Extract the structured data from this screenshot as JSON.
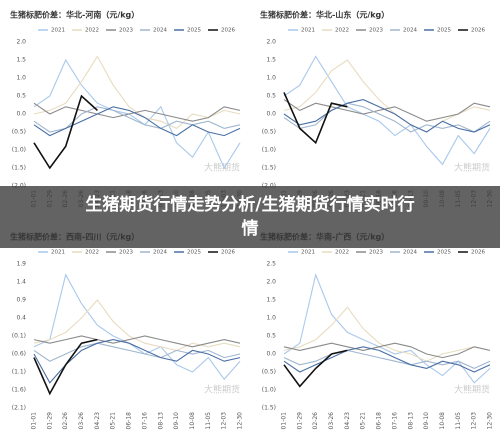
{
  "banner_title": "生猪期货行情走势分析/生猪期货行情实时行情",
  "chart_data": [
    {
      "type": "line",
      "title": "生猪标肥价差：华北-河南（元/kg）",
      "watermark": "大熊期货",
      "grid": false,
      "categories": [
        "01-01",
        "01-29",
        "02-26",
        "03-26",
        "04-23",
        "05-21",
        "06-18",
        "07-16",
        "08-13",
        "09-10",
        "10-08",
        "11-05",
        "12-03",
        "12-30"
      ],
      "ylim": [
        -2,
        2
      ],
      "yticks": [
        {
          "value": 2,
          "label": "2.0"
        },
        {
          "value": 1.5,
          "label": "1.5"
        },
        {
          "value": 1,
          "label": "1.0"
        },
        {
          "value": 0.5,
          "label": "0.5"
        },
        {
          "value": 0,
          "label": "0.0"
        },
        {
          "value": -0.5,
          "label": "(0.5)"
        },
        {
          "value": -1,
          "label": "(1.0)"
        },
        {
          "value": -1.5,
          "label": "(1.5)"
        },
        {
          "value": -2,
          "label": "(2.0)"
        }
      ],
      "series": [
        {
          "name": "2021",
          "color": "#a9c8ec",
          "values": [
            0.2,
            0.5,
            1.5,
            0.8,
            0.3,
            0.1,
            0.0,
            -0.3,
            0.2,
            -0.8,
            -1.2,
            -0.5,
            -1.5,
            -0.8
          ]
        },
        {
          "name": "2022",
          "color": "#e8dcc0",
          "values": [
            0.0,
            0.1,
            0.3,
            0.9,
            1.6,
            0.8,
            0.2,
            -0.1,
            -0.2,
            -0.4,
            0.0,
            -0.1,
            0.1,
            0.0
          ]
        },
        {
          "name": "2023",
          "color": "#8a8a8a",
          "values": [
            0.3,
            0.0,
            0.2,
            0.1,
            0.0,
            -0.1,
            0.0,
            0.1,
            0.0,
            -0.1,
            -0.2,
            -0.1,
            0.2,
            0.1
          ]
        },
        {
          "name": "2024",
          "color": "#9fb6cf",
          "values": [
            -0.2,
            -0.5,
            -0.4,
            0.0,
            0.2,
            0.1,
            -0.1,
            -0.3,
            -0.4,
            -0.2,
            -0.3,
            -0.2,
            -0.4,
            -0.3
          ]
        },
        {
          "name": "2025",
          "color": "#4a6fa5",
          "values": [
            -0.3,
            -0.6,
            -0.4,
            -0.2,
            0.0,
            0.2,
            0.1,
            -0.1,
            -0.4,
            -0.6,
            -0.3,
            -0.5,
            -0.6,
            -0.4
          ]
        },
        {
          "name": "2026",
          "color": "#111111",
          "values": [
            -0.8,
            -1.5,
            -0.9,
            0.5,
            0.1,
            null,
            null,
            null,
            null,
            null,
            null,
            null,
            null,
            null
          ]
        }
      ]
    },
    {
      "type": "line",
      "title": "生猪标肥价差：华北-山东（元/kg）",
      "watermark": "大熊期货",
      "grid": false,
      "categories": [
        "01-01",
        "01-29",
        "02-26",
        "03-26",
        "04-23",
        "05-21",
        "06-18",
        "07-16",
        "08-13",
        "09-10",
        "10-08",
        "11-05",
        "12-03",
        "12-30"
      ],
      "ylim": [
        -2,
        2
      ],
      "yticks": [
        {
          "value": 2,
          "label": "2.0"
        },
        {
          "value": 1.5,
          "label": "1.5"
        },
        {
          "value": 1,
          "label": "1.0"
        },
        {
          "value": 0.5,
          "label": "0.5"
        },
        {
          "value": 0,
          "label": "0.0"
        },
        {
          "value": -0.5,
          "label": "(0.5)"
        },
        {
          "value": -1,
          "label": "(1.0)"
        },
        {
          "value": -1.5,
          "label": "(1.5)"
        },
        {
          "value": -2,
          "label": "(2.0)"
        }
      ],
      "series": [
        {
          "name": "2021",
          "color": "#a9c8ec",
          "values": [
            0.5,
            0.8,
            1.6,
            0.9,
            0.2,
            0.0,
            -0.2,
            -0.6,
            -0.3,
            -0.9,
            -1.4,
            -0.6,
            -1.1,
            -0.4
          ]
        },
        {
          "name": "2022",
          "color": "#e8dcc0",
          "values": [
            0.1,
            0.2,
            0.6,
            1.2,
            1.5,
            0.9,
            0.4,
            0.0,
            -0.3,
            -0.5,
            -0.2,
            0.0,
            0.2,
            0.1
          ]
        },
        {
          "name": "2023",
          "color": "#8a8a8a",
          "values": [
            0.4,
            0.1,
            0.3,
            0.2,
            0.1,
            0.0,
            0.1,
            0.2,
            0.0,
            -0.2,
            -0.1,
            0.0,
            0.3,
            0.2
          ]
        },
        {
          "name": "2024",
          "color": "#9fb6cf",
          "values": [
            -0.1,
            -0.4,
            -0.3,
            0.1,
            0.3,
            0.2,
            0.0,
            -0.2,
            -0.5,
            -0.3,
            -0.4,
            -0.3,
            -0.5,
            -0.2
          ]
        },
        {
          "name": "2025",
          "color": "#4a6fa5",
          "values": [
            0.0,
            -0.3,
            -0.2,
            0.1,
            0.3,
            0.4,
            0.2,
            0.0,
            -0.3,
            -0.5,
            -0.2,
            -0.4,
            -0.5,
            -0.3
          ]
        },
        {
          "name": "2026",
          "color": "#111111",
          "values": [
            0.6,
            -0.4,
            -0.8,
            0.3,
            0.2,
            null,
            null,
            null,
            null,
            null,
            null,
            null,
            null,
            null
          ]
        }
      ]
    },
    {
      "type": "line",
      "title": "生猪标肥价差：西南-四川（元/kg）",
      "watermark": "大熊期货",
      "grid": false,
      "categories": [
        "01-01",
        "01-29",
        "02-26",
        "03-26",
        "04-23",
        "05-21",
        "06-18",
        "07-16",
        "08-13",
        "09-10",
        "10-08",
        "11-05",
        "12-03",
        "12-30"
      ],
      "ylim": [
        -2.1,
        1.9
      ],
      "yticks": [
        {
          "value": 1.9,
          "label": "1.9"
        },
        {
          "value": 1.4,
          "label": "1.4"
        },
        {
          "value": 0.9,
          "label": "0.9"
        },
        {
          "value": 0.4,
          "label": "0.4"
        },
        {
          "value": -0.1,
          "label": "(0.1)"
        },
        {
          "value": -0.6,
          "label": "(0.6)"
        },
        {
          "value": -1.1,
          "label": "(1.1)"
        },
        {
          "value": -1.6,
          "label": "(1.6)"
        },
        {
          "value": -2.1,
          "label": "(2.1)"
        }
      ],
      "series": [
        {
          "name": "2021",
          "color": "#a9c8ec",
          "values": [
            -0.4,
            -0.2,
            1.6,
            0.8,
            0.2,
            -0.1,
            -0.3,
            -0.6,
            -0.4,
            -0.9,
            -1.1,
            -0.7,
            -1.3,
            -0.8
          ]
        },
        {
          "name": "2022",
          "color": "#e8dcc0",
          "values": [
            -0.3,
            -0.2,
            0.0,
            0.4,
            0.9,
            0.3,
            -0.1,
            -0.3,
            -0.4,
            -0.5,
            -0.3,
            -0.4,
            -0.3,
            -0.4
          ]
        },
        {
          "name": "2023",
          "color": "#8a8a8a",
          "values": [
            -0.2,
            -0.3,
            -0.2,
            -0.1,
            -0.2,
            -0.3,
            -0.2,
            -0.1,
            -0.2,
            -0.3,
            -0.4,
            -0.3,
            -0.2,
            -0.3
          ]
        },
        {
          "name": "2024",
          "color": "#9fb6cf",
          "values": [
            -0.5,
            -0.8,
            -0.6,
            -0.4,
            -0.3,
            -0.4,
            -0.5,
            -0.6,
            -0.7,
            -0.5,
            -0.6,
            -0.5,
            -0.7,
            -0.6
          ]
        },
        {
          "name": "2025",
          "color": "#4a6fa5",
          "values": [
            -0.6,
            -1.4,
            -0.9,
            -0.5,
            -0.3,
            -0.2,
            -0.3,
            -0.5,
            -0.7,
            -0.8,
            -0.5,
            -0.6,
            -0.8,
            -0.7
          ]
        },
        {
          "name": "2026",
          "color": "#111111",
          "values": [
            -0.7,
            -1.7,
            -0.9,
            -0.3,
            -0.2,
            null,
            null,
            null,
            null,
            null,
            null,
            null,
            null,
            null
          ]
        }
      ]
    },
    {
      "type": "line",
      "title": "生猪标肥价差：华南-广西（元/kg）",
      "watermark": "大熊期货",
      "grid": false,
      "categories": [
        "01-01",
        "01-29",
        "02-26",
        "03-26",
        "04-23",
        "05-21",
        "06-18",
        "07-16",
        "08-13",
        "09-10",
        "10-08",
        "11-05",
        "12-03",
        "12-30"
      ],
      "ylim": [
        -1.5,
        2.5
      ],
      "yticks": [
        {
          "value": 2.5,
          "label": "2.5"
        },
        {
          "value": 2,
          "label": "2.0"
        },
        {
          "value": 1.5,
          "label": "1.5"
        },
        {
          "value": 1,
          "label": "1.0"
        },
        {
          "value": 0.5,
          "label": "0.5"
        },
        {
          "value": 0,
          "label": "0.0"
        },
        {
          "value": -0.5,
          "label": "(0.5)"
        },
        {
          "value": -1,
          "label": "(1.0)"
        },
        {
          "value": -1.5,
          "label": "(1.5)"
        }
      ],
      "series": [
        {
          "name": "2021",
          "color": "#a9c8ec",
          "values": [
            0.0,
            0.3,
            2.2,
            1.1,
            0.6,
            0.4,
            0.2,
            0.0,
            0.1,
            -0.3,
            -0.6,
            -0.2,
            -0.8,
            -0.4
          ]
        },
        {
          "name": "2022",
          "color": "#e8dcc0",
          "values": [
            0.1,
            0.2,
            0.4,
            0.8,
            1.3,
            0.7,
            0.3,
            0.1,
            0.0,
            -0.2,
            0.0,
            0.1,
            0.2,
            0.1
          ]
        },
        {
          "name": "2023",
          "color": "#8a8a8a",
          "values": [
            0.2,
            0.1,
            0.2,
            0.3,
            0.2,
            0.1,
            0.2,
            0.3,
            0.2,
            0.0,
            -0.1,
            0.0,
            0.2,
            0.1
          ]
        },
        {
          "name": "2024",
          "color": "#9fb6cf",
          "values": [
            -0.1,
            -0.3,
            -0.2,
            0.0,
            0.1,
            0.0,
            -0.1,
            -0.2,
            -0.3,
            -0.2,
            -0.3,
            -0.2,
            -0.4,
            -0.2
          ]
        },
        {
          "name": "2025",
          "color": "#4a6fa5",
          "values": [
            -0.2,
            -0.5,
            -0.3,
            -0.1,
            0.1,
            0.2,
            0.1,
            -0.1,
            -0.3,
            -0.4,
            -0.2,
            -0.3,
            -0.5,
            -0.3
          ]
        },
        {
          "name": "2026",
          "color": "#111111",
          "values": [
            -0.3,
            -0.9,
            -0.4,
            0.0,
            0.1,
            null,
            null,
            null,
            null,
            null,
            null,
            null,
            null,
            null
          ]
        }
      ]
    }
  ]
}
